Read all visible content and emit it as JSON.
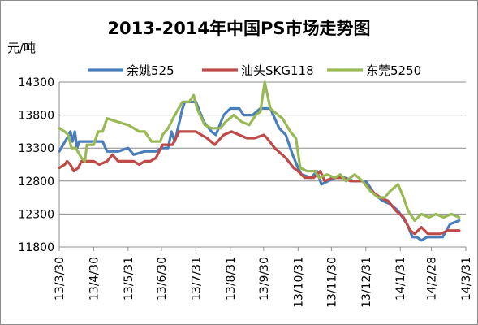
{
  "chart_data": {
    "type": "line",
    "title": "2013-2014年中国PS市场走势图",
    "ylabel": "元/吨",
    "xlabel": "",
    "ylim": [
      11800,
      14300
    ],
    "yticks": [
      "14300",
      "13800",
      "13300",
      "12800",
      "12300",
      "11800"
    ],
    "ytick_values": [
      14300,
      13800,
      13300,
      12800,
      12300,
      11800
    ],
    "x_dates": [
      "2013-03-30",
      "2013-04-30",
      "2013-05-31",
      "2013-06-30",
      "2013-07-31",
      "2013-08-31",
      "2013-09-30",
      "2013-10-31",
      "2013-11-30",
      "2013-12-31",
      "2014-01-31",
      "2014-02-28",
      "2014-03-31"
    ],
    "x_tick_labels": [
      "13/3/30",
      "13/4/30",
      "13/5/31",
      "13/6/30",
      "13/7/31",
      "13/8/31",
      "13/9/30",
      "13/10/31",
      "13/11/30",
      "13/12/31",
      "14/1/31",
      "14/2/28",
      "14/3/31"
    ],
    "legend_position": "top",
    "grid": "horizontal",
    "series": [
      {
        "name": "余姚525",
        "color": "#4a7ebb",
        "points": [
          [
            "2013-03-30",
            13250
          ],
          [
            "2013-04-06",
            13450
          ],
          [
            "2013-04-09",
            13550
          ],
          [
            "2013-04-11",
            13400
          ],
          [
            "2013-04-13",
            13550
          ],
          [
            "2013-04-15",
            13300
          ],
          [
            "2013-04-17",
            13400
          ],
          [
            "2013-04-30",
            13400
          ],
          [
            "2013-05-08",
            13400
          ],
          [
            "2013-05-12",
            13250
          ],
          [
            "2013-05-22",
            13250
          ],
          [
            "2013-05-31",
            13300
          ],
          [
            "2013-06-05",
            13200
          ],
          [
            "2013-06-15",
            13250
          ],
          [
            "2013-06-25",
            13250
          ],
          [
            "2013-06-30",
            13300
          ],
          [
            "2013-07-06",
            13300
          ],
          [
            "2013-07-09",
            13550
          ],
          [
            "2013-07-12",
            13400
          ],
          [
            "2013-07-19",
            13900
          ],
          [
            "2013-07-21",
            14000
          ],
          [
            "2013-07-31",
            14000
          ],
          [
            "2013-08-07",
            13700
          ],
          [
            "2013-08-14",
            13550
          ],
          [
            "2013-08-18",
            13500
          ],
          [
            "2013-08-25",
            13800
          ],
          [
            "2013-08-31",
            13900
          ],
          [
            "2013-09-08",
            13900
          ],
          [
            "2013-09-12",
            13800
          ],
          [
            "2013-09-20",
            13800
          ],
          [
            "2013-09-27",
            13900
          ],
          [
            "2013-10-06",
            13900
          ],
          [
            "2013-10-14",
            13600
          ],
          [
            "2013-10-20",
            13500
          ],
          [
            "2013-10-26",
            13200
          ],
          [
            "2013-10-31",
            13000
          ],
          [
            "2013-11-03",
            12900
          ],
          [
            "2013-11-12",
            12850
          ],
          [
            "2013-11-17",
            12950
          ],
          [
            "2013-11-21",
            12750
          ],
          [
            "2013-11-27",
            12800
          ],
          [
            "2013-12-04",
            12850
          ],
          [
            "2013-12-12",
            12850
          ],
          [
            "2013-12-20",
            12800
          ],
          [
            "2013-12-31",
            12800
          ],
          [
            "2014-01-08",
            12600
          ],
          [
            "2014-01-15",
            12500
          ],
          [
            "2014-01-22",
            12450
          ],
          [
            "2014-01-29",
            12350
          ],
          [
            "2014-02-06",
            12150
          ],
          [
            "2014-02-11",
            11950
          ],
          [
            "2014-02-15",
            11950
          ],
          [
            "2014-02-19",
            11900
          ],
          [
            "2014-02-24",
            11950
          ],
          [
            "2014-03-06",
            11950
          ],
          [
            "2014-03-10",
            11950
          ],
          [
            "2014-03-17",
            12150
          ],
          [
            "2014-03-25",
            12200
          ]
        ]
      },
      {
        "name": "汕头SKG118",
        "color": "#be4b48",
        "points": [
          [
            "2013-03-30",
            13000
          ],
          [
            "2013-04-04",
            13050
          ],
          [
            "2013-04-06",
            13100
          ],
          [
            "2013-04-09",
            13050
          ],
          [
            "2013-04-12",
            12950
          ],
          [
            "2013-04-16",
            13000
          ],
          [
            "2013-04-19",
            13100
          ],
          [
            "2013-04-30",
            13100
          ],
          [
            "2013-05-05",
            13050
          ],
          [
            "2013-05-12",
            13100
          ],
          [
            "2013-05-17",
            13200
          ],
          [
            "2013-05-22",
            13100
          ],
          [
            "2013-05-31",
            13100
          ],
          [
            "2013-06-05",
            13100
          ],
          [
            "2013-06-10",
            13050
          ],
          [
            "2013-06-15",
            13100
          ],
          [
            "2013-06-20",
            13100
          ],
          [
            "2013-06-25",
            13150
          ],
          [
            "2013-07-01",
            13350
          ],
          [
            "2013-07-10",
            13350
          ],
          [
            "2013-07-16",
            13550
          ],
          [
            "2013-07-31",
            13550
          ],
          [
            "2013-08-05",
            13500
          ],
          [
            "2013-08-10",
            13450
          ],
          [
            "2013-08-17",
            13350
          ],
          [
            "2013-08-25",
            13500
          ],
          [
            "2013-09-01",
            13550
          ],
          [
            "2013-09-08",
            13500
          ],
          [
            "2013-09-15",
            13450
          ],
          [
            "2013-09-22",
            13450
          ],
          [
            "2013-09-30",
            13500
          ],
          [
            "2013-10-03",
            13450
          ],
          [
            "2013-10-10",
            13300
          ],
          [
            "2013-10-20",
            13150
          ],
          [
            "2013-10-27",
            13000
          ],
          [
            "2013-10-31",
            12950
          ],
          [
            "2013-11-06",
            12850
          ],
          [
            "2013-11-14",
            12850
          ],
          [
            "2013-11-20",
            12950
          ],
          [
            "2013-11-24",
            12800
          ],
          [
            "2013-12-01",
            12850
          ],
          [
            "2013-12-10",
            12850
          ],
          [
            "2013-12-17",
            12800
          ],
          [
            "2013-12-28",
            12800
          ],
          [
            "2014-01-05",
            12650
          ],
          [
            "2014-01-13",
            12550
          ],
          [
            "2014-01-20",
            12500
          ],
          [
            "2014-01-27",
            12350
          ],
          [
            "2014-02-03",
            12250
          ],
          [
            "2014-02-09",
            12050
          ],
          [
            "2014-02-13",
            12000
          ],
          [
            "2014-02-19",
            12100
          ],
          [
            "2014-02-25",
            12000
          ],
          [
            "2014-03-08",
            12000
          ],
          [
            "2014-03-15",
            12050
          ],
          [
            "2014-03-25",
            12050
          ]
        ]
      },
      {
        "name": "东莞5250",
        "color": "#98b954",
        "points": [
          [
            "2013-03-30",
            13600
          ],
          [
            "2013-04-04",
            13550
          ],
          [
            "2013-04-07",
            13500
          ],
          [
            "2013-04-10",
            13300
          ],
          [
            "2013-04-14",
            13300
          ],
          [
            "2013-04-19",
            13150
          ],
          [
            "2013-04-22",
            13100
          ],
          [
            "2013-04-24",
            13350
          ],
          [
            "2013-04-30",
            13350
          ],
          [
            "2013-05-04",
            13550
          ],
          [
            "2013-05-08",
            13550
          ],
          [
            "2013-05-12",
            13750
          ],
          [
            "2013-05-21",
            13700
          ],
          [
            "2013-05-31",
            13650
          ],
          [
            "2013-06-05",
            13600
          ],
          [
            "2013-06-10",
            13550
          ],
          [
            "2013-06-15",
            13550
          ],
          [
            "2013-06-21",
            13400
          ],
          [
            "2013-06-29",
            13400
          ],
          [
            "2013-07-01",
            13500
          ],
          [
            "2013-07-06",
            13600
          ],
          [
            "2013-07-12",
            13800
          ],
          [
            "2013-07-19",
            14000
          ],
          [
            "2013-07-25",
            14000
          ],
          [
            "2013-07-29",
            14100
          ],
          [
            "2013-08-01",
            13900
          ],
          [
            "2013-08-08",
            13650
          ],
          [
            "2013-08-14",
            13600
          ],
          [
            "2013-08-22",
            13600
          ],
          [
            "2013-08-27",
            13700
          ],
          [
            "2013-09-03",
            13800
          ],
          [
            "2013-09-10",
            13700
          ],
          [
            "2013-09-17",
            13650
          ],
          [
            "2013-09-23",
            13800
          ],
          [
            "2013-09-27",
            13850
          ],
          [
            "2013-10-01",
            14300
          ],
          [
            "2013-10-06",
            13900
          ],
          [
            "2013-10-13",
            13800
          ],
          [
            "2013-10-17",
            13750
          ],
          [
            "2013-10-24",
            13550
          ],
          [
            "2013-10-29",
            13450
          ],
          [
            "2013-11-02",
            13000
          ],
          [
            "2013-11-08",
            12950
          ],
          [
            "2013-11-15",
            12950
          ],
          [
            "2013-11-19",
            12850
          ],
          [
            "2013-11-26",
            12900
          ],
          [
            "2013-12-03",
            12850
          ],
          [
            "2013-12-08",
            12900
          ],
          [
            "2013-12-13",
            12800
          ],
          [
            "2013-12-21",
            12900
          ],
          [
            "2013-12-28",
            12800
          ],
          [
            "2014-01-04",
            12650
          ],
          [
            "2014-01-11",
            12550
          ],
          [
            "2014-01-17",
            12550
          ],
          [
            "2014-01-22",
            12650
          ],
          [
            "2014-01-29",
            12750
          ],
          [
            "2014-02-03",
            12550
          ],
          [
            "2014-02-07",
            12350
          ],
          [
            "2014-02-13",
            12200
          ],
          [
            "2014-02-19",
            12300
          ],
          [
            "2014-02-26",
            12250
          ],
          [
            "2014-03-04",
            12300
          ],
          [
            "2014-03-11",
            12250
          ],
          [
            "2014-03-18",
            12300
          ],
          [
            "2014-03-25",
            12250
          ]
        ]
      }
    ]
  }
}
